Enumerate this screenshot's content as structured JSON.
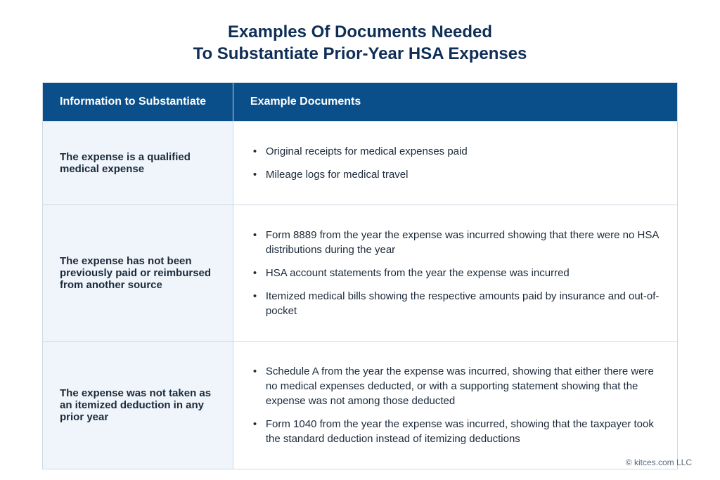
{
  "title": {
    "line1": "Examples Of Documents Needed",
    "line2": "To Substantiate Prior-Year HSA Expenses",
    "color": "#0f2e57",
    "fontsize": 24
  },
  "table": {
    "header_bg": "#0b4f8a",
    "header_fg": "#ffffff",
    "header_fontsize": 16,
    "col1_bg": "#eff5fb",
    "col2_bg": "#ffffff",
    "border_color": "#cfd8e3",
    "text_color": "#1b2a3a",
    "cell_fontsize": 15,
    "columns": [
      "Information to Substantiate",
      "Example Documents"
    ],
    "rows": [
      {
        "info": "The expense is a qualified medical expense",
        "docs": [
          "Original receipts for medical expenses paid",
          "Mileage logs for medical travel"
        ]
      },
      {
        "info": "The expense has not been previously paid or reimbursed from another source",
        "docs": [
          "Form 8889 from the year the expense was incurred showing that there were no HSA distributions during the year",
          "HSA account statements from the year the expense was incurred",
          "Itemized medical bills showing the respective amounts paid by insurance and out-of-pocket"
        ]
      },
      {
        "info": "The expense was not taken as an itemized deduction in any prior year",
        "docs": [
          "Schedule A from the year the expense was incurred, showing that either there were no medical expenses deducted, or with a supporting statement showing that the expense was not among those deducted",
          "Form 1040 from the year the expense was incurred, showing that the taxpayer took the standard deduction instead of itemizing deductions"
        ]
      }
    ]
  },
  "footer": "© kitces.com LLC"
}
